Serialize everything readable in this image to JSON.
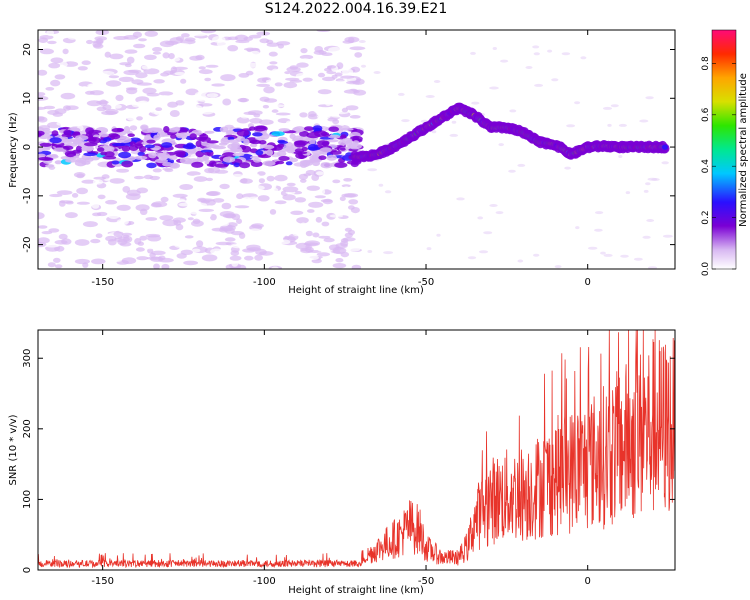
{
  "title": "S124.2022.004.16.39.E21",
  "charts": [
    {
      "type": "heatmap",
      "xlabel": "Height of straight line (km)",
      "ylabel": "Frequency (Hz)",
      "xlim": [
        -170,
        27
      ],
      "ylim": [
        -25,
        24
      ],
      "xticks": [
        -150,
        -100,
        -50,
        0
      ],
      "yticks": [
        -20,
        -10,
        0,
        10,
        20
      ],
      "ridge": [
        [
          -70,
          -2
        ],
        [
          -65,
          -1.5
        ],
        [
          -60,
          0
        ],
        [
          -55,
          2
        ],
        [
          -50,
          4
        ],
        [
          -45,
          6
        ],
        [
          -40,
          8
        ],
        [
          -35,
          6.5
        ],
        [
          -30,
          4
        ],
        [
          -25,
          4
        ],
        [
          -20,
          3
        ],
        [
          -15,
          1
        ],
        [
          -10,
          0.5
        ],
        [
          -5,
          -1.5
        ],
        [
          0,
          0
        ],
        [
          5,
          0.2
        ],
        [
          10,
          0
        ],
        [
          15,
          0
        ],
        [
          25,
          0
        ]
      ],
      "noise_band": {
        "x_range": [
          -170,
          -70
        ],
        "center": 0,
        "half_width": 3
      },
      "colorbar": {
        "label": "Normalized spectral amplitude",
        "ticks": [
          0.0,
          0.2,
          0.4,
          0.6,
          0.8
        ],
        "range": [
          0,
          0.93
        ]
      }
    },
    {
      "type": "line",
      "xlabel": "Height of straight line (km)",
      "ylabel": "SNR (10 * v/v)",
      "xlim": [
        -170,
        27
      ],
      "ylim": [
        0,
        340
      ],
      "xticks": [
        -150,
        -100,
        -50,
        0
      ],
      "yticks": [
        0,
        100,
        200,
        300
      ],
      "color": "#e8332a",
      "envelope": [
        [
          -170,
          8
        ],
        [
          -100,
          10
        ],
        [
          -75,
          12
        ],
        [
          -68,
          30
        ],
        [
          -62,
          55
        ],
        [
          -58,
          70
        ],
        [
          -55,
          90
        ],
        [
          -52,
          80
        ],
        [
          -50,
          45
        ],
        [
          -45,
          25
        ],
        [
          -40,
          25
        ],
        [
          -37,
          50
        ],
        [
          -35,
          100
        ],
        [
          -30,
          140
        ],
        [
          -25,
          150
        ],
        [
          -20,
          155
        ],
        [
          -15,
          170
        ],
        [
          -10,
          190
        ],
        [
          -5,
          200
        ],
        [
          0,
          215
        ],
        [
          5,
          230
        ],
        [
          10,
          250
        ],
        [
          15,
          270
        ],
        [
          20,
          290
        ],
        [
          27,
          290
        ]
      ]
    }
  ]
}
